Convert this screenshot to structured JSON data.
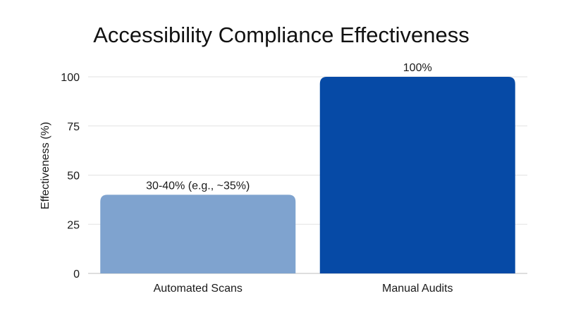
{
  "chart_data": {
    "type": "bar",
    "title": "Accessibility Compliance Effectiveness",
    "xlabel": "",
    "ylabel": "Effectiveness (%)",
    "ylim": [
      0,
      100
    ],
    "yticks": [
      0,
      25,
      50,
      75,
      100
    ],
    "ytick_labels": [
      "0",
      "25",
      "50",
      "75",
      "100"
    ],
    "grid": true,
    "categories": [
      "Automated Scans",
      "Manual Audits"
    ],
    "values": [
      40,
      100
    ],
    "data_labels": [
      "30-40% (e.g., ~35%)",
      "100%"
    ],
    "colors": [
      "#7fa3cf",
      "#064aa6"
    ]
  }
}
